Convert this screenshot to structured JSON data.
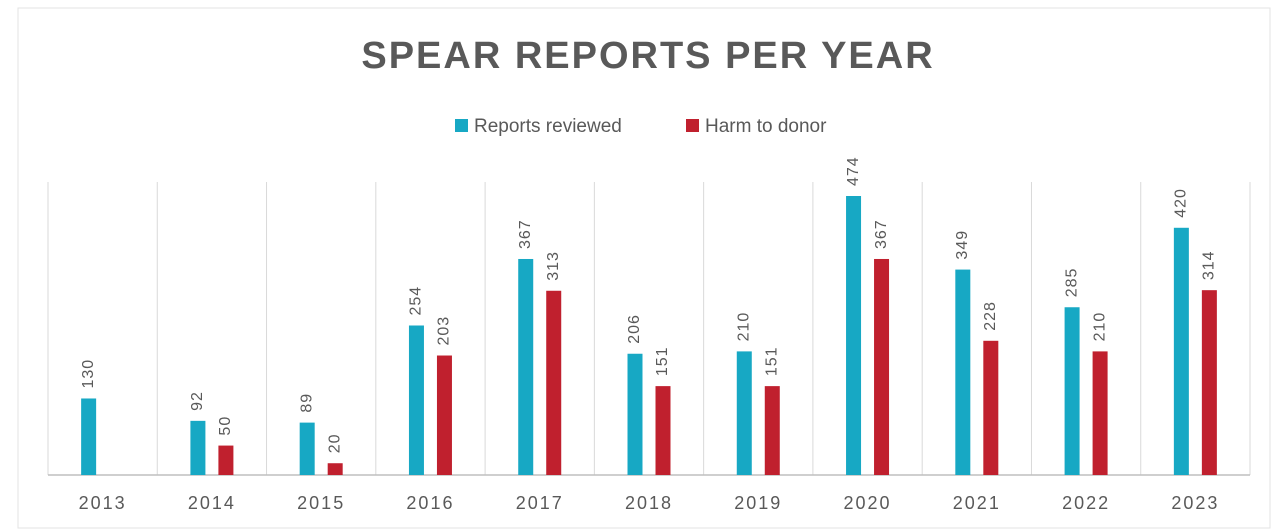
{
  "chart_data": {
    "type": "bar",
    "title": "SPEAR REPORTS PER YEAR",
    "categories": [
      "2013",
      "2014",
      "2015",
      "2016",
      "2017",
      "2018",
      "2019",
      "2020",
      "2021",
      "2022",
      "2023"
    ],
    "series": [
      {
        "name": "Reports reviewed",
        "color": "#17a8c4",
        "values": [
          130,
          92,
          89,
          254,
          367,
          206,
          210,
          474,
          349,
          285,
          420
        ]
      },
      {
        "name": "Harm to donor",
        "color": "#c0202e",
        "values": [
          null,
          50,
          20,
          203,
          313,
          151,
          151,
          367,
          228,
          210,
          314
        ]
      }
    ],
    "legend": "top"
  }
}
